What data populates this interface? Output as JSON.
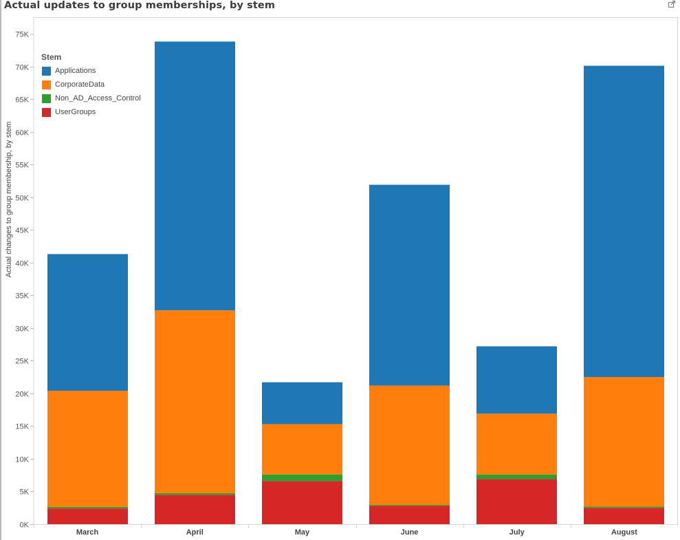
{
  "header": {
    "title": "Actual updates to group memberships, by stem",
    "popout_icon": "external-link-icon"
  },
  "chart_data": {
    "type": "bar",
    "stacked": true,
    "title": "Actual updates to group memberships, by stem",
    "xlabel": "",
    "ylabel": "Actual changes to group membership, by stem",
    "ylim": [
      0,
      77500
    ],
    "yticks": [
      0,
      5000,
      10000,
      15000,
      20000,
      25000,
      30000,
      35000,
      40000,
      45000,
      50000,
      55000,
      60000,
      65000,
      70000,
      75000
    ],
    "ytick_labels": [
      "0K",
      "5K",
      "10K",
      "15K",
      "20K",
      "25K",
      "30K",
      "35K",
      "40K",
      "45K",
      "50K",
      "55K",
      "60K",
      "65K",
      "70K",
      "75K"
    ],
    "grid": false,
    "legend_title": "Stem",
    "legend_position": "top-left",
    "categories": [
      "March",
      "April",
      "May",
      "June",
      "July",
      "August"
    ],
    "series": [
      {
        "name": "UserGroups",
        "color": "#d62728",
        "values": [
          2400,
          4500,
          6600,
          2800,
          6900,
          2500
        ]
      },
      {
        "name": "Non_AD_Access_Control",
        "color": "#2ca02c",
        "values": [
          250,
          250,
          1000,
          150,
          700,
          200
        ]
      },
      {
        "name": "CorporateData",
        "color": "#ff7f0e",
        "values": [
          17750,
          27950,
          7700,
          18250,
          9300,
          19800
        ]
      },
      {
        "name": "Applications",
        "color": "#1f77b4",
        "values": [
          20900,
          41100,
          6400,
          30700,
          10300,
          47600
        ]
      }
    ],
    "legend_order": [
      "Applications",
      "CorporateData",
      "Non_AD_Access_Control",
      "UserGroups"
    ]
  }
}
